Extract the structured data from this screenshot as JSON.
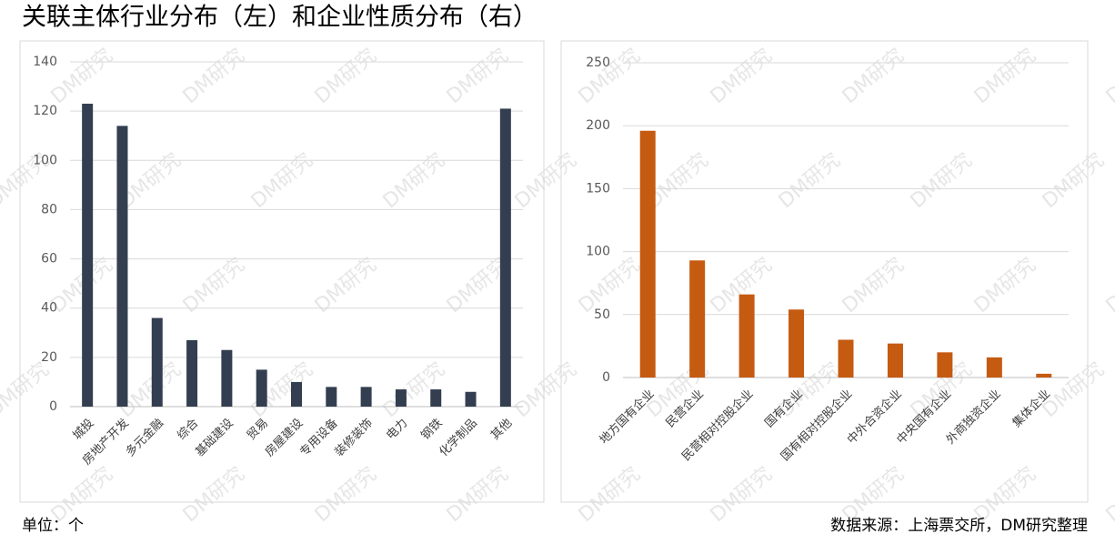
{
  "title": "关联主体行业分布（左）和企业性质分布（右）",
  "unit_note": "单位：个",
  "source_note": "数据来源：上海票交所，DM研究整理",
  "watermark": "DM研究",
  "chart_data": [
    {
      "type": "bar",
      "categories": [
        "城投",
        "房地产开发",
        "多元金融",
        "综合",
        "基础建设",
        "贸易",
        "房屋建设",
        "专用设备",
        "装修装饰",
        "电力",
        "钢铁",
        "化学制品",
        "其他"
      ],
      "values": [
        123,
        114,
        36,
        27,
        23,
        15,
        10,
        8,
        8,
        7,
        7,
        6,
        121
      ],
      "color": "#333f50",
      "ylim": [
        0,
        140
      ],
      "yticks": [
        0,
        20,
        40,
        60,
        80,
        100,
        120,
        140
      ],
      "grid": true
    },
    {
      "type": "bar",
      "categories": [
        "地方国有企业",
        "民营企业",
        "民营相对控股企业",
        "国有企业",
        "国有相对控股企业",
        "中外合资企业",
        "中央国有企业",
        "外商独资企业",
        "集体企业"
      ],
      "values": [
        196,
        93,
        66,
        54,
        30,
        27,
        20,
        16,
        3
      ],
      "color": "#c55a11",
      "ylim": [
        0,
        250
      ],
      "yticks": [
        0,
        50,
        100,
        150,
        200,
        250
      ],
      "grid": true
    }
  ]
}
